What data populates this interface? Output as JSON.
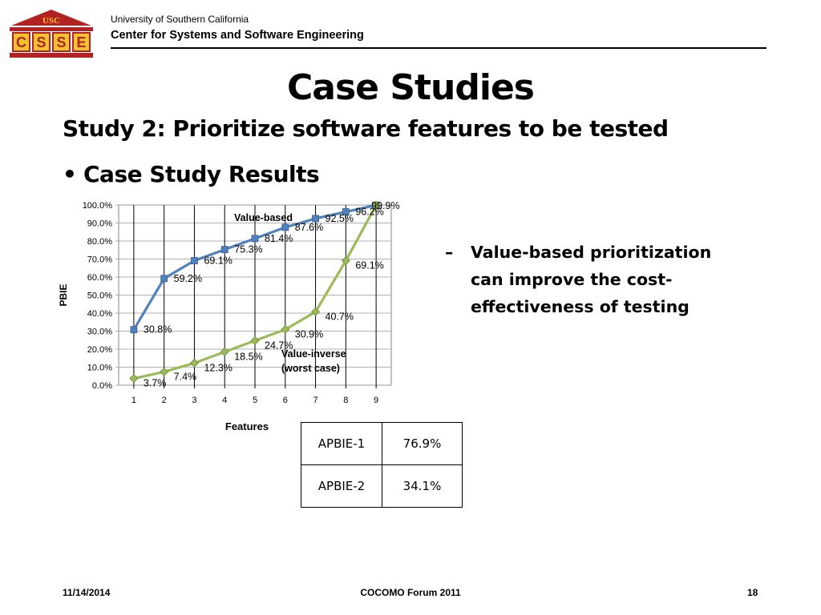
{
  "header": {
    "logo_text": "USC",
    "logo_letters": [
      "C",
      "S",
      "S",
      "E"
    ],
    "university": "University of Southern California",
    "center": "Center for Systems and Software Engineering"
  },
  "slide": {
    "title": "Case Studies",
    "subtitle": "Study 2: Prioritize software features to be tested",
    "bullet": "Case Study Results",
    "bullet_marker": "•",
    "side_marker": "–",
    "side_text": "Value-based prioritization can improve the cost-effectiveness of testing"
  },
  "table": {
    "rows": [
      {
        "label": "APBIE-1",
        "value": "76.9%"
      },
      {
        "label": "APBIE-2",
        "value": "34.1%"
      }
    ]
  },
  "footer": {
    "date": "11/14/2014",
    "center": "COCOMO Forum 2011",
    "page": "18"
  },
  "colors": {
    "value_based": "#4F81BD",
    "value_inverse": "#9BBB59",
    "logo_red": "#B22222",
    "logo_gold": "#F2C230"
  },
  "chart_data": {
    "type": "line",
    "x": [
      1,
      2,
      3,
      4,
      5,
      6,
      7,
      8,
      9
    ],
    "xlabel": "Features",
    "ylabel": "PBIE",
    "ylim": [
      0,
      100
    ],
    "ytick_labels": [
      "0.0%",
      "10.0%",
      "20.0%",
      "30.0%",
      "40.0%",
      "50.0%",
      "60.0%",
      "70.0%",
      "80.0%",
      "90.0%",
      "100.0%"
    ],
    "grid": "vertical",
    "series": [
      {
        "name": "Value-based",
        "marker": "square",
        "values": [
          30.8,
          59.2,
          69.1,
          75.3,
          81.4,
          87.6,
          92.5,
          96.2,
          99.9
        ],
        "labels": [
          "30.8%",
          "59.2%",
          "69.1%",
          "75.3%",
          "81.4%",
          "87.6%",
          "92.5%",
          "96.2%",
          "99.9%"
        ]
      },
      {
        "name": "Value-inverse (worst case)",
        "name_lines": [
          "Value-inverse",
          "(worst case)"
        ],
        "marker": "diamond",
        "values": [
          3.7,
          7.4,
          12.3,
          18.5,
          24.7,
          30.9,
          40.7,
          69.1,
          99.9
        ],
        "labels": [
          "3.7%",
          "7.4%",
          "12.3%",
          "18.5%",
          "24.7%",
          "30.9%",
          "40.7%",
          "69.1%",
          "99.9%"
        ]
      }
    ]
  }
}
